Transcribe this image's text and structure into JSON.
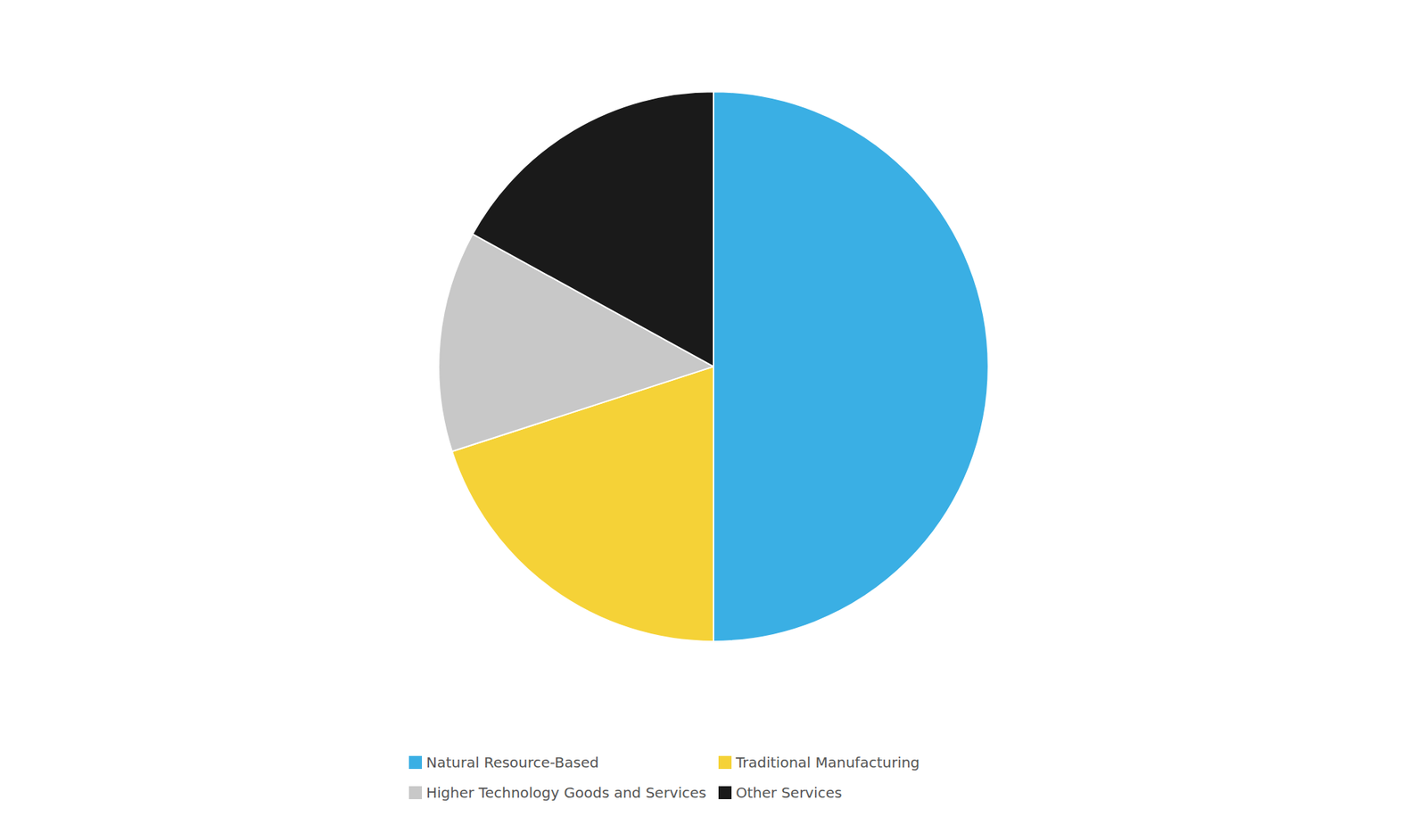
{
  "chart_data": {
    "type": "pie",
    "categories": [
      "Natural Resource-Based",
      "Traditional Manufacturing",
      "Higher Technology Goods and Services",
      "Other Services"
    ],
    "values": [
      50,
      20,
      13,
      17
    ],
    "colors": [
      "#3AAFE4",
      "#F5D237",
      "#C8C8C8",
      "#1A1A1A"
    ],
    "legend": "bottom"
  }
}
